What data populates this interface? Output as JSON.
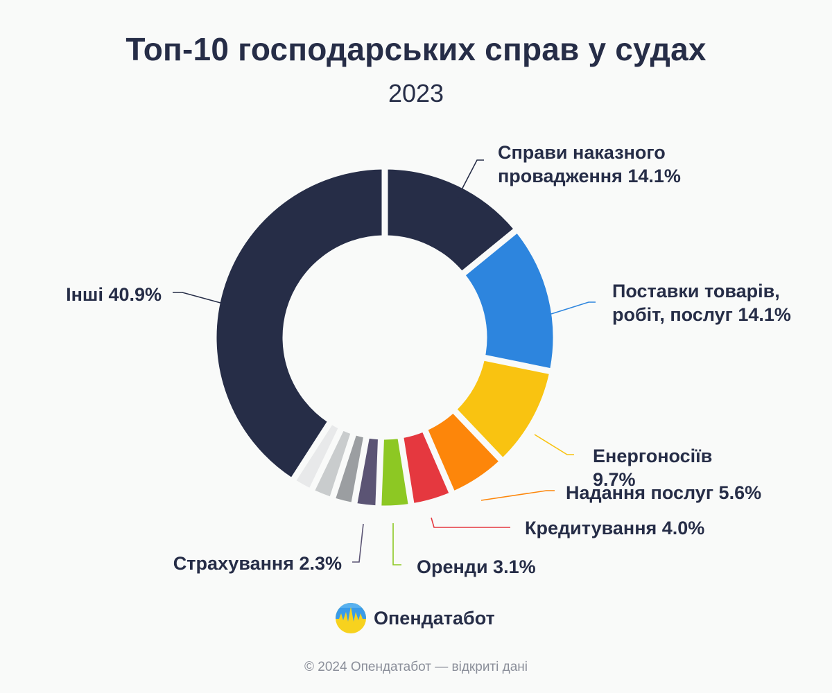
{
  "title": "Топ-10 господарських справ у судах",
  "subtitle": "2023",
  "brand": {
    "name": "Опендатабот",
    "logo_icon": "opendatabot-logo-icon"
  },
  "footer": "© 2024 Опендатабот — відкриті дані",
  "chart_data": {
    "type": "pie",
    "title": "Топ-10 господарських справ у судах",
    "subtitle": "2023",
    "donut": true,
    "slices": [
      {
        "label": "Справи наказного провадження 14.1%",
        "value": 14.1,
        "color": "#262d47"
      },
      {
        "label": "Поставки товарів, робіт, послуг 14.1%",
        "value": 14.1,
        "color": "#2d85de"
      },
      {
        "label": "Енергоносіїв 9.7%",
        "value": 9.7,
        "color": "#f9c311"
      },
      {
        "label": "Надання послуг 5.6%",
        "value": 5.6,
        "color": "#fd860a"
      },
      {
        "label": "Кредитування 4.0%",
        "value": 4.0,
        "color": "#e5383f"
      },
      {
        "label": "Оренди 3.1%",
        "value": 3.1,
        "color": "#8dc823"
      },
      {
        "label": "Страхування 2.3%",
        "value": 2.3,
        "color": "#5b5474"
      },
      {
        "label": "",
        "value": 2.1,
        "color": "#9b9ea1"
      },
      {
        "label": "",
        "value": 2.1,
        "color": "#c9cccd"
      },
      {
        "label": "",
        "value": 2.0,
        "color": "#e8e9ea"
      },
      {
        "label": "Інші 40.9%",
        "value": 40.9,
        "color": "#262d47"
      }
    ]
  }
}
